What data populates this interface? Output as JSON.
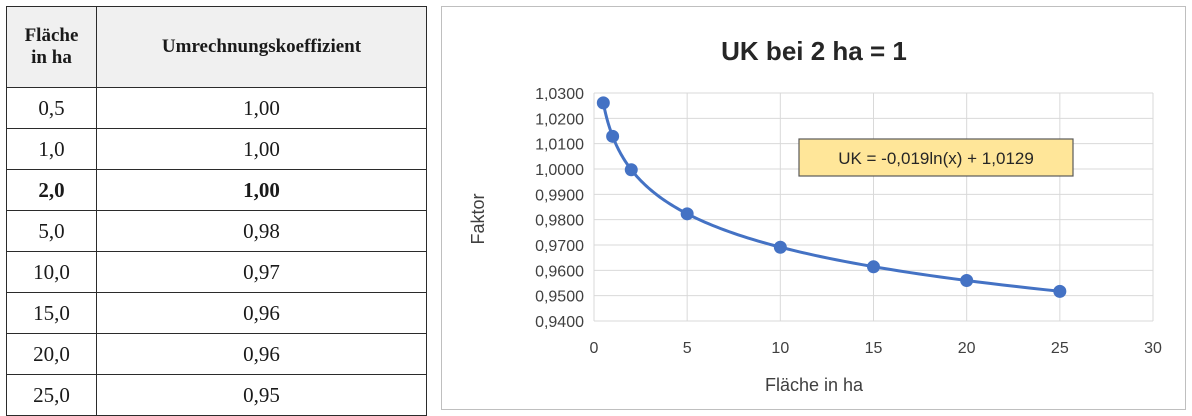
{
  "table": {
    "headers": [
      "Fläche\nin ha",
      "Umrechnungskoeffizient"
    ],
    "rows": [
      [
        "0,5",
        "1,00"
      ],
      [
        "1,0",
        "1,00"
      ],
      [
        "2,0",
        "1,00"
      ],
      [
        "5,0",
        "0,98"
      ],
      [
        "10,0",
        "0,97"
      ],
      [
        "15,0",
        "0,96"
      ],
      [
        "20,0",
        "0,96"
      ],
      [
        "25,0",
        "0,95"
      ]
    ],
    "bold_row": 2
  },
  "chart_data": {
    "type": "scatter",
    "title": "UK bei 2 ha = 1",
    "xlabel": "Fläche in ha",
    "ylabel": "Faktor",
    "xlim": [
      0,
      30
    ],
    "ylim": [
      0.94,
      1.03
    ],
    "x_ticks": [
      "0",
      "5",
      "10",
      "15",
      "20",
      "25",
      "30"
    ],
    "y_ticks": [
      "0,9400",
      "0,9500",
      "0,9600",
      "0,9700",
      "0,9800",
      "0,9900",
      "1,0000",
      "1,0100",
      "1,0200",
      "1,0300"
    ],
    "grid": true,
    "series": [
      {
        "x": [
          0.5,
          1,
          2,
          5,
          10,
          15,
          20,
          25
        ],
        "y": [
          1.0261,
          1.0129,
          0.9997,
          0.9823,
          0.9691,
          0.9614,
          0.956,
          0.9517
        ]
      }
    ],
    "trendline": {
      "type": "logarithmic",
      "a": -0.019,
      "b": 1.0129,
      "label": "UK = -0,019ln(x) + 1,0129"
    },
    "colors": {
      "series": "#4472c4",
      "label_box": "#ffe699"
    }
  }
}
